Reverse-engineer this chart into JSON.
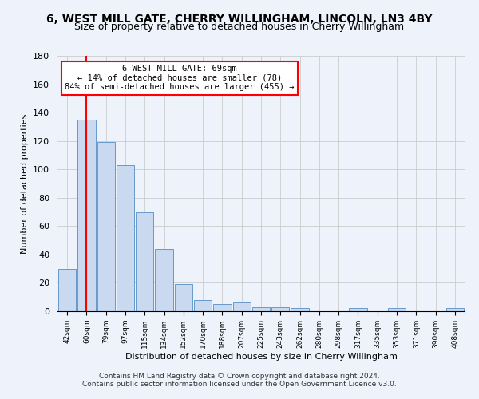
{
  "title1": "6, WEST MILL GATE, CHERRY WILLINGHAM, LINCOLN, LN3 4BY",
  "title2": "Size of property relative to detached houses in Cherry Willingham",
  "xlabel": "Distribution of detached houses by size in Cherry Willingham",
  "ylabel": "Number of detached properties",
  "footnote1": "Contains HM Land Registry data © Crown copyright and database right 2024.",
  "footnote2": "Contains public sector information licensed under the Open Government Licence v3.0.",
  "categories": [
    "42sqm",
    "60sqm",
    "79sqm",
    "97sqm",
    "115sqm",
    "134sqm",
    "152sqm",
    "170sqm",
    "188sqm",
    "207sqm",
    "225sqm",
    "243sqm",
    "262sqm",
    "280sqm",
    "298sqm",
    "317sqm",
    "335sqm",
    "353sqm",
    "371sqm",
    "390sqm",
    "408sqm"
  ],
  "values": [
    30,
    135,
    119,
    103,
    70,
    44,
    19,
    8,
    5,
    6,
    3,
    3,
    2,
    0,
    0,
    2,
    0,
    2,
    0,
    0,
    2
  ],
  "bar_color": "#c9d9f0",
  "bar_edge_color": "#6699cc",
  "ylim": [
    0,
    180
  ],
  "yticks": [
    0,
    20,
    40,
    60,
    80,
    100,
    120,
    140,
    160,
    180
  ],
  "property_line_x": 1.0,
  "property_sqm": 69,
  "annotation_line1": "6 WEST MILL GATE: 69sqm",
  "annotation_line2": "← 14% of detached houses are smaller (78)",
  "annotation_line3": "84% of semi-detached houses are larger (455) →",
  "annotation_box_color": "white",
  "annotation_border_color": "red",
  "property_line_color": "red",
  "background_color": "#eef2fb",
  "grid_color": "#cccccc",
  "title1_fontsize": 10,
  "title2_fontsize": 9,
  "footnote_fontsize": 6.5
}
